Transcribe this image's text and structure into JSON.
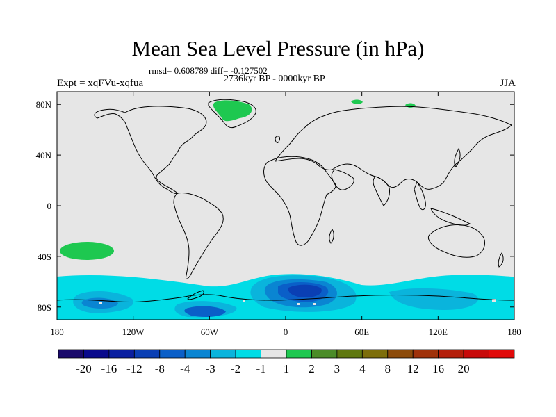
{
  "map": {
    "title": "Mean Sea Level Pressure (in hPa)",
    "stats_text": "rmsd= 0.608789 diff= -0.127502",
    "period_text": "2736kyr BP - 0000kyr BP",
    "experiment_text": "Expt = xqFVu-xqfua",
    "season_text": "JJA",
    "lat_ticks": [
      "80N",
      "40N",
      "0",
      "40S",
      "80S"
    ],
    "lon_ticks": [
      "180",
      "120W",
      "60W",
      "0",
      "60E",
      "120E",
      "180"
    ],
    "lat_tick_values": [
      80,
      40,
      0,
      -40,
      -80
    ],
    "lon_tick_values": [
      -180,
      -120,
      -60,
      0,
      60,
      120,
      180
    ],
    "lat_range": [
      -90,
      90
    ],
    "lon_range": [
      -180,
      180
    ],
    "background_color": "#e6e6e6",
    "coastline_color": "#000000"
  },
  "colorbar": {
    "colors": [
      "#1a0a6b",
      "#0a0a8c",
      "#0a1fa0",
      "#0a3fb4",
      "#0a5fc8",
      "#0a85d2",
      "#0ab4dc",
      "#00dce6",
      "#e6e6e6",
      "#1ec850",
      "#4b8c28",
      "#5f780f",
      "#7d6e0a",
      "#8c4b0a",
      "#a0320a",
      "#b41e0a",
      "#c80a0a",
      "#e10a0a"
    ],
    "labels": [
      "-20",
      "-16",
      "-12",
      "-8",
      "-4",
      "-3",
      "-2",
      "-1",
      "1",
      "2",
      "3",
      "4",
      "8",
      "12",
      "16",
      "20"
    ]
  }
}
